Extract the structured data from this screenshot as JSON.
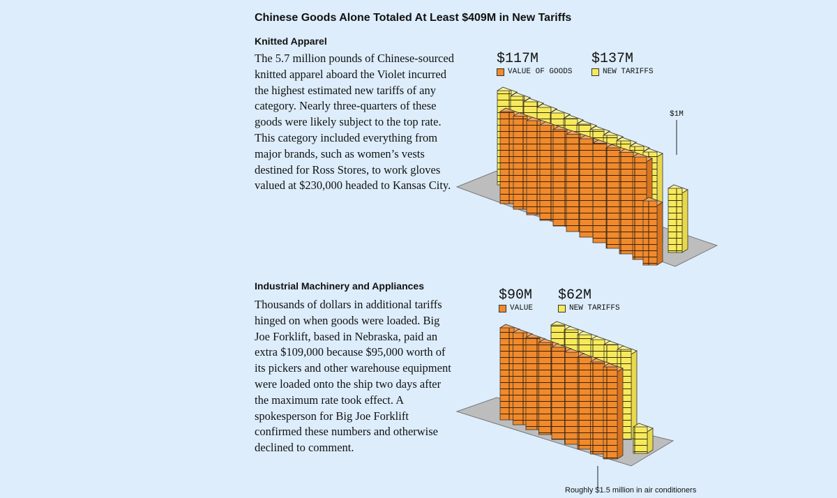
{
  "header": {
    "title": "Chinese Goods Alone Totaled At Least $409M in New Tariffs"
  },
  "sections": [
    {
      "heading": "Knitted Apparel",
      "body": "The 5.7 million pounds of Chinese-sourced knitted apparel aboard the Violet incurred the highest estimated new tariffs of any category. Nearly three-quarters of these goods were likely subject to the top rate. This category included everything from major brands, such as women’s vests destined for Ross Stores, to work gloves valued at $230,000 headed to Kansas City.",
      "figure": {
        "legend": [
          {
            "amount": "$117M",
            "label": "VALUE OF GOODS"
          },
          {
            "amount": "$137M",
            "label": "NEW TARIFFS"
          }
        ],
        "annotation": "$1M"
      }
    },
    {
      "heading": "Industrial Machinery and Appliances",
      "body": "Thousands of dollars in additional tariffs hinged on when goods were loaded. Big Joe Forklift, based in Nebraska, paid an extra $109,000 because $95,000 worth of its pickers and other warehouse equipment were loaded onto the ship two days after the maximum rate took effect. A spokesperson for Big Joe Forklift confirmed these numbers and otherwise declined to comment.",
      "figure": {
        "legend": [
          {
            "amount": "$90M",
            "label": "VALUE"
          },
          {
            "amount": "$62M",
            "label": "NEW TARIFFS"
          }
        ],
        "annotation": "Roughly $1.5 million in air conditioners"
      }
    }
  ]
}
